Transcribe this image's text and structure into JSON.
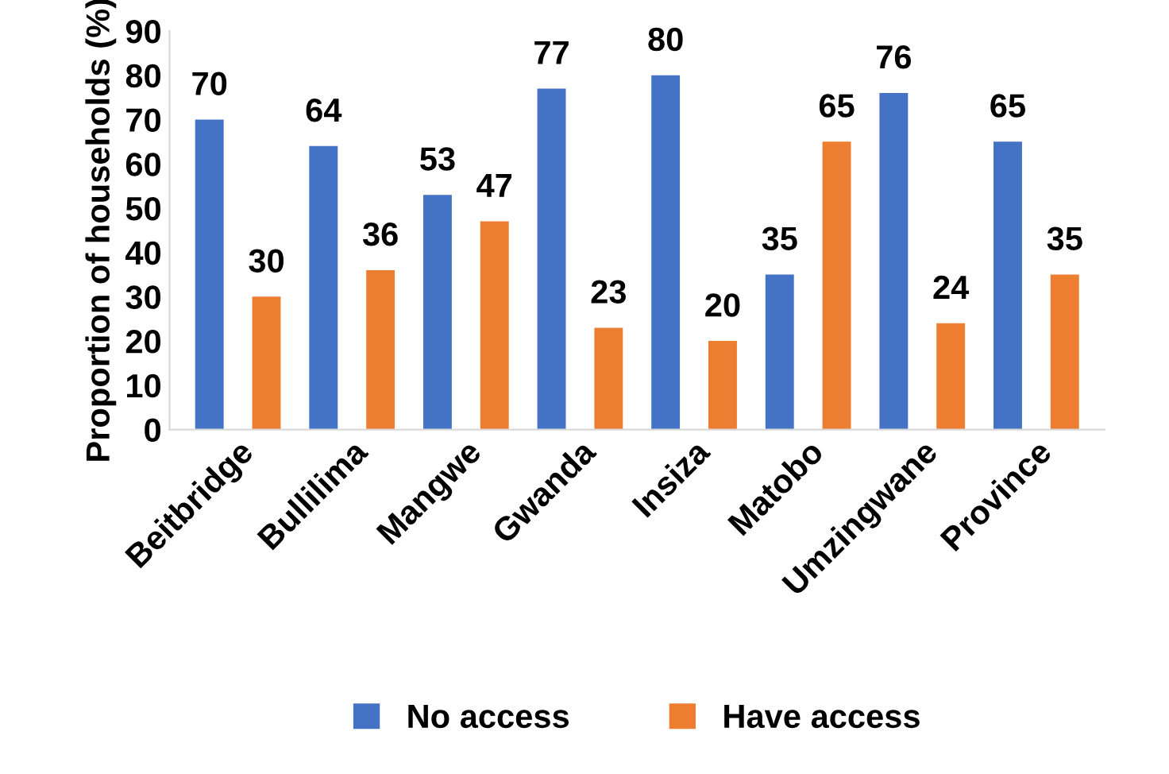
{
  "chart_data": {
    "type": "bar",
    "ylabel": "Proportion of households (%)",
    "categories": [
      "Beitbridge",
      "Bullilima",
      "Mangwe",
      "Gwanda",
      "Insiza",
      "Matobo",
      "Umzingwane",
      "Province"
    ],
    "series": [
      {
        "name": "No access",
        "color": "#4472c4",
        "values": [
          70,
          64,
          53,
          77,
          80,
          35,
          76,
          65
        ]
      },
      {
        "name": "Have access",
        "color": "#ed7d31",
        "values": [
          30,
          36,
          47,
          23,
          20,
          65,
          24,
          35
        ]
      }
    ],
    "ylim": [
      0,
      90
    ],
    "yticks": [
      0,
      10,
      20,
      30,
      40,
      50,
      60,
      70,
      80,
      90
    ],
    "grid": false,
    "legend": "bottom",
    "data_labels": true
  }
}
